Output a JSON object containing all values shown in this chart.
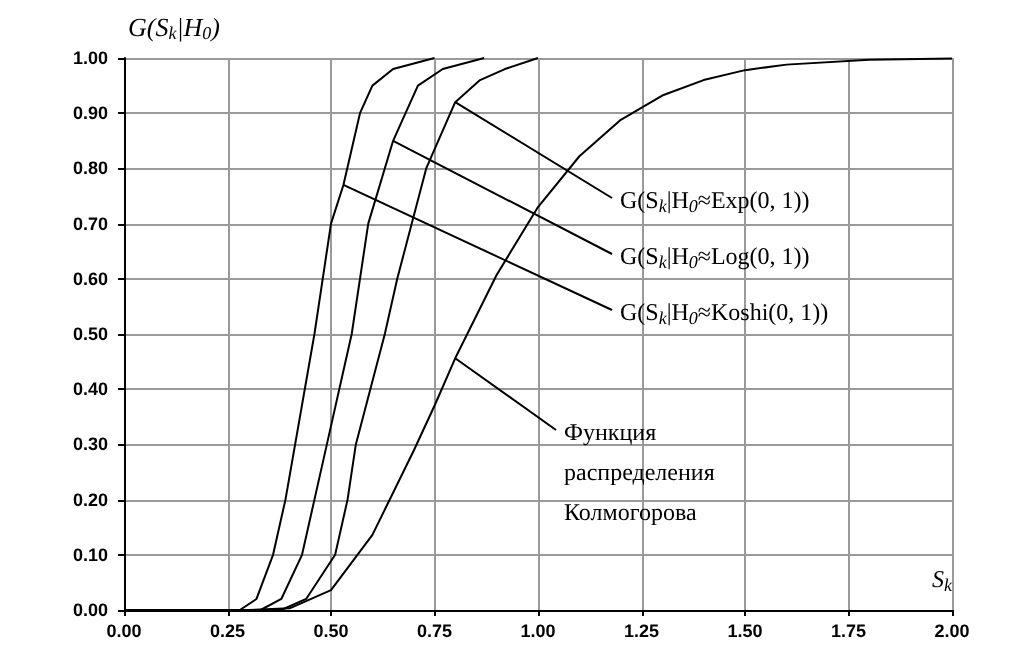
{
  "chart_data": {
    "type": "line",
    "xlabel": "S$_{k}$",
    "ylabel": "G(S$_{k}$|H$_{0}$)",
    "xlim": [
      0,
      2
    ],
    "ylim": [
      0,
      1
    ],
    "xticks": [
      {
        "value": 0,
        "label": "0.00"
      },
      {
        "value": 0.25,
        "label": "0.25"
      },
      {
        "value": 0.5,
        "label": "0.50"
      },
      {
        "value": 0.75,
        "label": "0.75"
      },
      {
        "value": 1,
        "label": "1.00"
      },
      {
        "value": 1.25,
        "label": "1.25"
      },
      {
        "value": 1.5,
        "label": "1.50"
      },
      {
        "value": 1.75,
        "label": "1.75"
      },
      {
        "value": 2,
        "label": "2.00"
      }
    ],
    "yticks": [
      {
        "value": 0,
        "label": "0.00"
      },
      {
        "value": 0.1,
        "label": "0.10"
      },
      {
        "value": 0.2,
        "label": "0.20"
      },
      {
        "value": 0.3,
        "label": "0.30"
      },
      {
        "value": 0.4,
        "label": "0.40"
      },
      {
        "value": 0.5,
        "label": "0.50"
      },
      {
        "value": 0.6,
        "label": "0.60"
      },
      {
        "value": 0.7,
        "label": "0.70"
      },
      {
        "value": 0.8,
        "label": "0.80"
      },
      {
        "value": 0.9,
        "label": "0.90"
      },
      {
        "value": 1,
        "label": "1.00"
      }
    ],
    "grid": true,
    "marker": "none",
    "line_style": "solid",
    "series": [
      {
        "color": "#000000",
        "x": [
          0,
          0.28,
          0.32,
          0.36,
          0.39,
          0.46,
          0.48,
          0.5,
          0.53,
          0.57,
          0.6,
          0.65,
          0.75
        ],
        "values": [
          0,
          0,
          0.02,
          0.1,
          0.2,
          0.5,
          0.6,
          0.7,
          0.77,
          0.9,
          0.95,
          0.98,
          1
        ]
      },
      {
        "color": "#000000",
        "x": [
          0,
          0.33,
          0.38,
          0.43,
          0.46,
          0.49,
          0.55,
          0.57,
          0.59,
          0.65,
          0.68,
          0.71,
          0.77,
          0.87
        ],
        "values": [
          0,
          0,
          0.02,
          0.1,
          0.2,
          0.3,
          0.5,
          0.6,
          0.7,
          0.85,
          0.9,
          0.95,
          0.98,
          1
        ]
      },
      {
        "color": "#000000",
        "x": [
          0,
          0.38,
          0.44,
          0.51,
          0.54,
          0.56,
          0.63,
          0.66,
          0.73,
          0.8,
          0.86,
          0.92,
          1.0
        ],
        "values": [
          0,
          0,
          0.02,
          0.1,
          0.2,
          0.3,
          0.5,
          0.6,
          0.8,
          0.92,
          0.96,
          0.98,
          1
        ]
      },
      {
        "color": "#000000",
        "x": [
          0,
          0.3,
          0.4,
          0.5,
          0.6,
          0.7,
          0.75,
          0.8,
          0.9,
          1.0,
          1.1,
          1.2,
          1.3,
          1.4,
          1.5,
          1.6,
          1.8,
          2.0
        ],
        "values": [
          0,
          0,
          0.003,
          0.036,
          0.136,
          0.289,
          0.37,
          0.456,
          0.607,
          0.73,
          0.822,
          0.888,
          0.932,
          0.96,
          0.978,
          0.988,
          0.997,
          0.999
        ]
      }
    ],
    "annotations": [
      {
        "text": "G(S$_{k}$|H$_{0}$≈Exp(0, 1))",
        "x": 0.8,
        "y": 0.92
      },
      {
        "text": "G(S$_{k}$|H$_{0}$≈Log(0, 1))",
        "x": 0.65,
        "y": 0.85
      },
      {
        "text": "G(S$_{k}$|H$_{0}$≈Koshi(0, 1))",
        "x": 0.53,
        "y": 0.77
      },
      {
        "text": "Функция распределения Колмогорова",
        "x": 0.8,
        "y": 0.456
      }
    ]
  }
}
